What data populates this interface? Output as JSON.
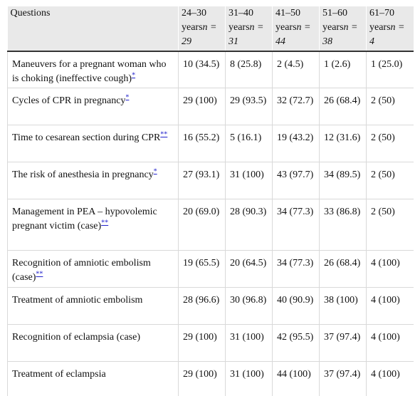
{
  "header": {
    "questions": "Questions",
    "groups": [
      {
        "label": "24–30 years",
        "n": "n = 29"
      },
      {
        "label": "31–40 years",
        "n": "n = 31"
      },
      {
        "label": "41–50 years",
        "n": "n = 44"
      },
      {
        "label": "51–60 years",
        "n": "n = 38"
      },
      {
        "label": "61–70 years",
        "n": "n = 4"
      }
    ]
  },
  "rows": [
    {
      "question": "Maneuvers for a pregnant woman who is choking (ineffective cough)",
      "footnote": "*",
      "values": [
        "10 (34.5)",
        "8 (25.8)",
        "2 (4.5)",
        "1 (2.6)",
        "1 (25.0)"
      ]
    },
    {
      "question": "Cycles of CPR in pregnancy",
      "footnote": "*",
      "values": [
        "29 (100)",
        "29 (93.5)",
        "32 (72.7)",
        "26 (68.4)",
        "2 (50)"
      ]
    },
    {
      "question": "Time to cesarean section during CPR",
      "footnote": "**",
      "values": [
        "16 (55.2)",
        "5 (16.1)",
        "19 (43.2)",
        "12 (31.6)",
        "2 (50)"
      ]
    },
    {
      "question": "The risk of anesthesia in pregnancy",
      "footnote": "*",
      "values": [
        "27 (93.1)",
        "31 (100)",
        "43 (97.7)",
        "34 (89.5)",
        "2 (50)"
      ]
    },
    {
      "question": "Management in PEA – hypovolemic pregnant victim (case)",
      "footnote": "**",
      "values": [
        "20 (69.0)",
        "28 (90.3)",
        "34 (77.3)",
        "33 (86.8)",
        "2 (50)"
      ]
    },
    {
      "question": "Recognition of amniotic embolism (case)",
      "footnote": "**",
      "values": [
        "19 (65.5)",
        "20 (64.5)",
        "34 (77.3)",
        "26 (68.4)",
        "4 (100)"
      ]
    },
    {
      "question": "Treatment of amniotic embolism",
      "footnote": "",
      "values": [
        "28 (96.6)",
        "30 (96.8)",
        "40 (90.9)",
        "38 (100)",
        "4 (100)"
      ]
    },
    {
      "question": "Recognition of eclampsia (case)",
      "footnote": "",
      "values": [
        "29 (100)",
        "31 (100)",
        "42 (95.5)",
        "37 (97.4)",
        "4 (100)"
      ]
    },
    {
      "question": "Treatment of eclampsia",
      "footnote": "",
      "values": [
        "29 (100)",
        "31 (100)",
        "44 (100)",
        "37 (97.4)",
        "4 (100)"
      ]
    }
  ]
}
